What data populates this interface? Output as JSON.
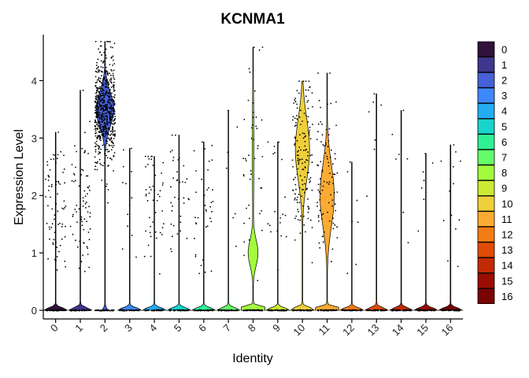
{
  "chart_data": {
    "type": "violin",
    "title": "KCNMA1",
    "xlabel": "Identity",
    "ylabel": "Expression Level",
    "categories": [
      "0",
      "1",
      "2",
      "3",
      "4",
      "5",
      "6",
      "7",
      "8",
      "9",
      "10",
      "11",
      "12",
      "13",
      "14",
      "15",
      "16"
    ],
    "ylim": [
      -0.15,
      4.8
    ],
    "yticks": [
      0,
      1,
      2,
      3,
      4
    ],
    "colors": [
      "#30123b",
      "#3e378f",
      "#4660d7",
      "#3e88fe",
      "#23adf5",
      "#18d5cc",
      "#2ef094",
      "#64fd6a",
      "#a2fc3c",
      "#cbe935",
      "#eecf3a",
      "#fcab32",
      "#f57c15",
      "#e04c06",
      "#c12a02",
      "#990e01",
      "#7a0403"
    ],
    "series": [
      {
        "name": "0",
        "max": 3.1,
        "pct_expressing": 0.08,
        "violin_peak": null
      },
      {
        "name": "1",
        "max": 3.83,
        "pct_expressing": 0.08,
        "violin_peak": null
      },
      {
        "name": "2",
        "max": 4.68,
        "pct_expressing": 0.85,
        "violin_peak": 3.5
      },
      {
        "name": "3",
        "max": 2.82,
        "pct_expressing": 0.02,
        "violin_peak": null
      },
      {
        "name": "4",
        "max": 2.68,
        "pct_expressing": 0.05,
        "violin_peak": null
      },
      {
        "name": "5",
        "max": 3.05,
        "pct_expressing": 0.04,
        "violin_peak": null
      },
      {
        "name": "6",
        "max": 2.93,
        "pct_expressing": 0.04,
        "violin_peak": null
      },
      {
        "name": "7",
        "max": 3.48,
        "pct_expressing": 0.01,
        "violin_peak": null
      },
      {
        "name": "8",
        "max": 4.58,
        "pct_expressing": 0.2,
        "violin_peak": 1.0
      },
      {
        "name": "9",
        "max": 2.93,
        "pct_expressing": 0.03,
        "violin_peak": null
      },
      {
        "name": "10",
        "max": 3.99,
        "pct_expressing": 0.45,
        "violin_peak": 2.8
      },
      {
        "name": "11",
        "max": 4.13,
        "pct_expressing": 0.35,
        "violin_peak": 2.0
      },
      {
        "name": "12",
        "max": 2.58,
        "pct_expressing": 0.01,
        "violin_peak": null
      },
      {
        "name": "13",
        "max": 3.77,
        "pct_expressing": 0.01,
        "violin_peak": null
      },
      {
        "name": "14",
        "max": 3.48,
        "pct_expressing": 0.01,
        "violin_peak": null
      },
      {
        "name": "15",
        "max": 2.73,
        "pct_expressing": 0.01,
        "violin_peak": null
      },
      {
        "name": "16",
        "max": 2.88,
        "pct_expressing": 0.02,
        "violin_peak": null
      }
    ],
    "legend": {
      "position": "right",
      "entries": [
        "0",
        "1",
        "2",
        "3",
        "4",
        "5",
        "6",
        "7",
        "8",
        "9",
        "10",
        "11",
        "12",
        "13",
        "14",
        "15",
        "16"
      ]
    },
    "grid": false,
    "points": true
  }
}
